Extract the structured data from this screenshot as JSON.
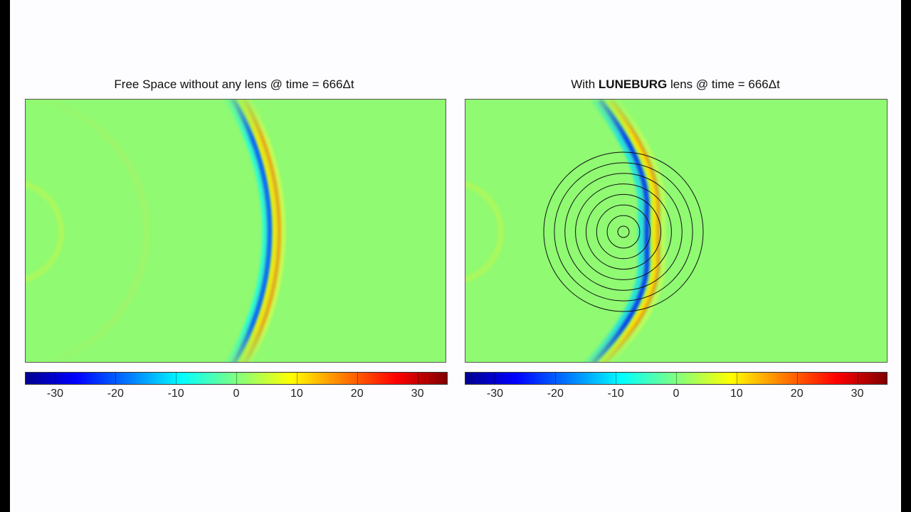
{
  "panels": [
    {
      "title": "Free Space without any lens @ time = 666Δt",
      "title_bold": "",
      "title_prefix": "",
      "title_suffix": "",
      "lens": false
    },
    {
      "title": "",
      "title_prefix": "With ",
      "title_bold": "LUNEBURG",
      "title_suffix": " lens @ time = 666Δt",
      "lens": true
    }
  ],
  "chart_data": [
    {
      "type": "heatmap",
      "title": "Free Space without any lens @ time = 666Δt",
      "colorbar": {
        "colormap": "jet",
        "range": [
          -35,
          35
        ],
        "ticks": [
          -30,
          -20,
          -10,
          0,
          10,
          20,
          30
        ],
        "tick_labels": [
          "-30",
          "-20",
          "-10",
          "0",
          "10",
          "20",
          "30"
        ]
      },
      "field": "circular wavefront centred left of the domain, blue trough ahead of red crest, background 0"
    },
    {
      "type": "heatmap",
      "title": "With LUNEBURG lens @ time = 666Δt",
      "colorbar": {
        "colormap": "jet",
        "range": [
          -35,
          35
        ],
        "ticks": [
          -30,
          -20,
          -10,
          0,
          10,
          20,
          30
        ],
        "tick_labels": [
          "-30",
          "-20",
          "-10",
          "0",
          "10",
          "20",
          "30"
        ]
      },
      "lens_rings": 8,
      "field": "wavefront flattened into a plane wave while passing through the concentric-ring lens"
    }
  ],
  "colors": {
    "background_zero": "#8ffa72",
    "jet_min": "#00008f",
    "jet_max": "#800000",
    "ring_stroke": "#111111"
  }
}
